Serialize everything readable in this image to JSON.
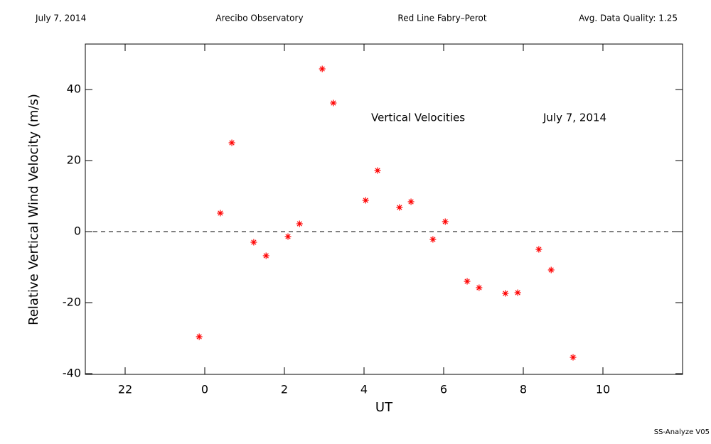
{
  "chart_data": {
    "type": "scatter",
    "header": [
      "July 7, 2014",
      "Arecibo Observatory",
      "Red Line Fabry–Perot",
      "Avg. Data Quality: 1.25"
    ],
    "annotations": [
      "Vertical Velocities",
      "July 7, 2014"
    ],
    "footer": "SS-Analyze V05",
    "xlabel": "UT",
    "ylabel": "Relative Vertical Wind Velocity (m/s)",
    "xlim": [
      21,
      36
    ],
    "ylim": [
      -40.2,
      52.8
    ],
    "xticks": [
      {
        "value": 22,
        "label": "22"
      },
      {
        "value": 24,
        "label": "0"
      },
      {
        "value": 26,
        "label": "2"
      },
      {
        "value": 28,
        "label": "4"
      },
      {
        "value": 30,
        "label": "6"
      },
      {
        "value": 32,
        "label": "8"
      },
      {
        "value": 34,
        "label": "10"
      }
    ],
    "yticks": [
      -40,
      -20,
      0,
      20,
      40
    ],
    "hline": 0,
    "color": "#ff0000",
    "x": [
      23.86,
      24.39,
      24.68,
      25.23,
      25.54,
      26.09,
      26.38,
      26.95,
      27.23,
      28.04,
      28.34,
      28.89,
      29.18,
      29.73,
      30.04,
      30.59,
      30.89,
      31.55,
      31.86,
      32.39,
      32.7,
      33.25
    ],
    "values": [
      -29.6,
      5.2,
      25,
      -3,
      -6.8,
      -1.4,
      2.2,
      45.8,
      36.2,
      8.8,
      17.2,
      6.8,
      8.4,
      -2.2,
      2.8,
      -14,
      -15.8,
      -17.4,
      -17.2,
      -5,
      -10.8,
      -35.4
    ]
  }
}
